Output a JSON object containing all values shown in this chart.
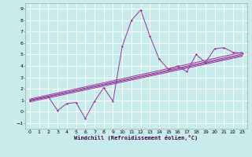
{
  "xlabel": "Windchill (Refroidissement éolien,°C)",
  "bg_color": "#c8ecec",
  "grid_color": "#ffffff",
  "line_color": "#993399",
  "xlim": [
    -0.5,
    23.5
  ],
  "ylim": [
    -1.5,
    9.5
  ],
  "xticks": [
    0,
    1,
    2,
    3,
    4,
    5,
    6,
    7,
    8,
    9,
    10,
    11,
    12,
    13,
    14,
    15,
    16,
    17,
    18,
    19,
    20,
    21,
    22,
    23
  ],
  "yticks": [
    -1,
    0,
    1,
    2,
    3,
    4,
    5,
    6,
    7,
    8,
    9
  ],
  "series": [
    [
      0,
      1.0
    ],
    [
      2,
      1.3
    ],
    [
      3,
      0.1
    ],
    [
      4,
      0.7
    ],
    [
      5,
      0.8
    ],
    [
      6,
      -0.6
    ],
    [
      7,
      0.9
    ],
    [
      8,
      2.1
    ],
    [
      9,
      0.9
    ],
    [
      10,
      5.7
    ],
    [
      11,
      8.0
    ],
    [
      12,
      8.9
    ],
    [
      13,
      6.6
    ],
    [
      14,
      4.6
    ],
    [
      15,
      3.7
    ],
    [
      16,
      4.0
    ],
    [
      17,
      3.5
    ],
    [
      18,
      5.0
    ],
    [
      19,
      4.3
    ],
    [
      20,
      5.5
    ],
    [
      21,
      5.6
    ],
    [
      22,
      5.2
    ],
    [
      23,
      5.1
    ]
  ],
  "regression_lines": [
    [
      1.0,
      5.05
    ],
    [
      0.85,
      4.85
    ],
    [
      1.1,
      5.2
    ],
    [
      0.95,
      4.95
    ]
  ]
}
